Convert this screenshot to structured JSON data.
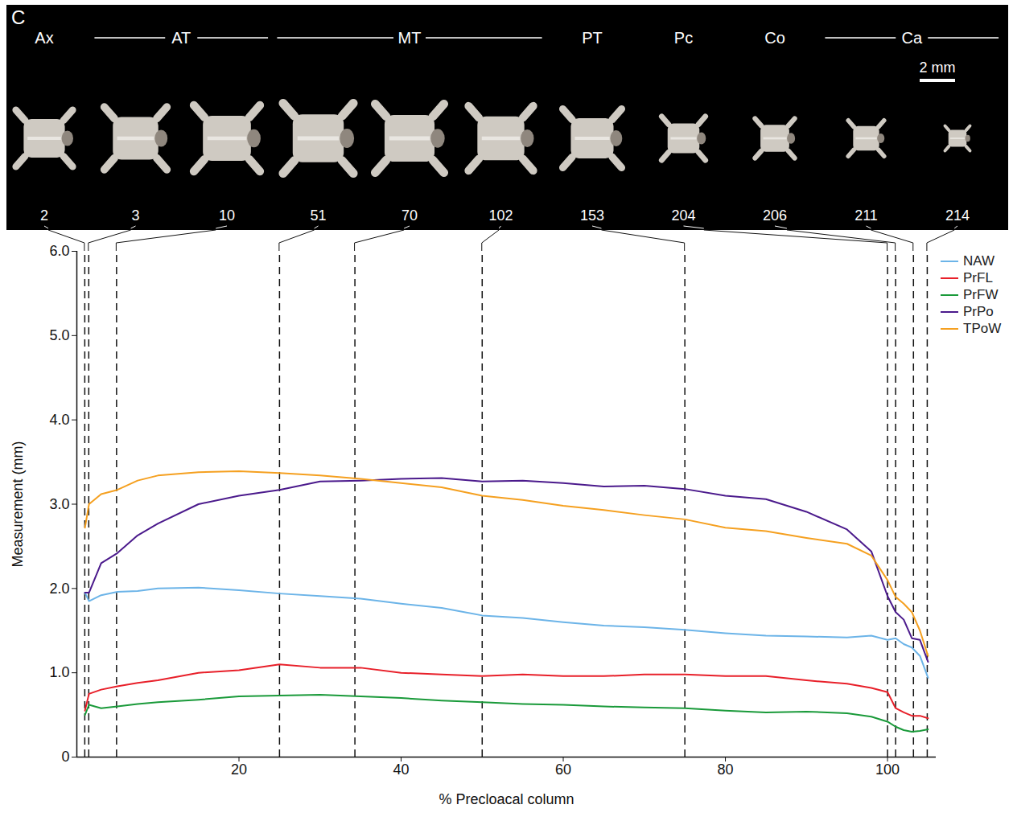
{
  "chart_data": {
    "type": "line",
    "panel": "C",
    "scale_bar": "2 mm",
    "xlabel": "% Precloacal column",
    "ylabel": "Measurement (mm)",
    "xlim": [
      0,
      106
    ],
    "ylim": [
      0,
      6
    ],
    "xticks": [
      20,
      40,
      60,
      80,
      100
    ],
    "yticks": [
      0,
      {
        "value": 1,
        "label": "1.0"
      },
      {
        "value": 2,
        "label": "2.0"
      },
      {
        "value": 3,
        "label": "3.0"
      },
      {
        "value": 4,
        "label": "4.0"
      },
      {
        "value": 5,
        "label": "5.0"
      },
      {
        "value": 6,
        "label": "6.0"
      }
    ],
    "legend": "top right",
    "regions": [
      "Ax",
      "AT",
      "MT",
      "PT",
      "Pc",
      "Co",
      "Ca"
    ],
    "vertebrae": [
      {
        "label": "2",
        "x": 0.98,
        "region": "Ax"
      },
      {
        "label": "3",
        "x": 1.47,
        "region": "AT"
      },
      {
        "label": "10",
        "x": 4.9,
        "region": "AT"
      },
      {
        "label": "51",
        "x": 25,
        "region": "MT"
      },
      {
        "label": "70",
        "x": 34.3,
        "region": "MT"
      },
      {
        "label": "102",
        "x": 50,
        "region": "MT"
      },
      {
        "label": "153",
        "x": 75,
        "region": "PT"
      },
      {
        "label": "204",
        "x": 100,
        "region": "Pc"
      },
      {
        "label": "206",
        "x": 101,
        "region": "Co"
      },
      {
        "label": "211",
        "x": 103.2,
        "region": "Ca"
      },
      {
        "label": "214",
        "x": 104.9,
        "region": "Ca"
      }
    ],
    "x": [
      1,
      1.5,
      3,
      5,
      7.5,
      10,
      15,
      20,
      25,
      30,
      35,
      40,
      45,
      50,
      55,
      60,
      65,
      70,
      75,
      80,
      85,
      90,
      95,
      98,
      100,
      101,
      102,
      103,
      104,
      105
    ],
    "series": [
      {
        "name": "NAW",
        "color": "#6cb4e8",
        "values": [
          1.95,
          1.85,
          1.92,
          1.96,
          1.97,
          2.0,
          2.01,
          1.98,
          1.94,
          1.91,
          1.88,
          1.82,
          1.77,
          1.68,
          1.65,
          1.6,
          1.56,
          1.54,
          1.51,
          1.47,
          1.44,
          1.43,
          1.42,
          1.44,
          1.39,
          1.41,
          1.34,
          1.3,
          1.2,
          0.94
        ]
      },
      {
        "name": "PrFL",
        "color": "#e8202a",
        "values": [
          0.55,
          0.75,
          0.8,
          0.84,
          0.88,
          0.91,
          1.0,
          1.03,
          1.1,
          1.06,
          1.06,
          1.0,
          0.98,
          0.96,
          0.98,
          0.96,
          0.96,
          0.98,
          0.98,
          0.96,
          0.96,
          0.91,
          0.87,
          0.82,
          0.77,
          0.58,
          0.53,
          0.49,
          0.49,
          0.46
        ]
      },
      {
        "name": "PrFW",
        "color": "#1a9a3a",
        "values": [
          0.5,
          0.62,
          0.58,
          0.6,
          0.63,
          0.65,
          0.68,
          0.72,
          0.73,
          0.74,
          0.72,
          0.7,
          0.67,
          0.65,
          0.63,
          0.62,
          0.6,
          0.59,
          0.58,
          0.55,
          0.53,
          0.54,
          0.52,
          0.48,
          0.42,
          0.36,
          0.32,
          0.3,
          0.31,
          0.33
        ]
      },
      {
        "name": "PrPo",
        "color": "#4b1a8c",
        "values": [
          1.95,
          1.95,
          2.3,
          2.42,
          2.63,
          2.77,
          3.0,
          3.1,
          3.17,
          3.27,
          3.28,
          3.3,
          3.31,
          3.27,
          3.28,
          3.25,
          3.21,
          3.22,
          3.18,
          3.1,
          3.06,
          2.91,
          2.7,
          2.44,
          1.91,
          1.72,
          1.63,
          1.41,
          1.39,
          1.13
        ]
      },
      {
        "name": "TPoW",
        "color": "#f5a020",
        "values": [
          2.72,
          3.0,
          3.12,
          3.17,
          3.28,
          3.34,
          3.38,
          3.39,
          3.37,
          3.34,
          3.3,
          3.25,
          3.2,
          3.1,
          3.05,
          2.98,
          2.93,
          2.87,
          2.82,
          2.72,
          2.68,
          2.6,
          2.53,
          2.39,
          2.1,
          1.9,
          1.82,
          1.72,
          1.5,
          1.2
        ]
      }
    ]
  }
}
